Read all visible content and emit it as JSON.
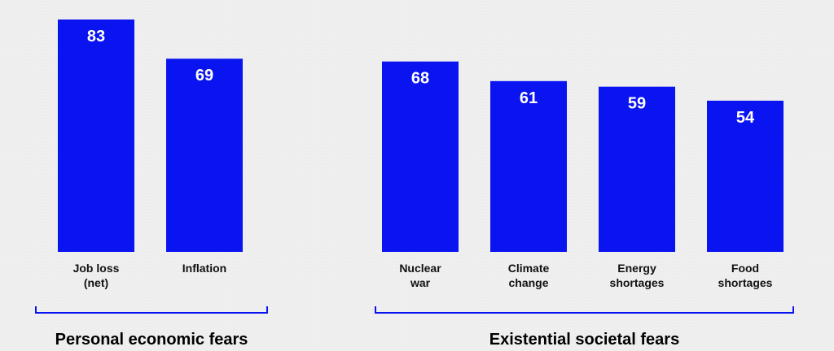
{
  "chart_data": {
    "type": "bar",
    "title": "",
    "xlabel": "",
    "ylabel": "",
    "ylim": [
      0,
      83
    ],
    "grid": false,
    "legend": "none",
    "bar_color": "#0a14f0",
    "groups": [
      {
        "label": "Personal economic fears",
        "bars": [
          {
            "label": [
              "Job loss",
              "(net)"
            ],
            "value": 83
          },
          {
            "label": [
              "Inflation"
            ],
            "value": 69
          }
        ]
      },
      {
        "label": "Existential societal fears",
        "bars": [
          {
            "label": [
              "Nuclear",
              "war"
            ],
            "value": 68
          },
          {
            "label": [
              "Climate",
              "change"
            ],
            "value": 61
          },
          {
            "label": [
              "Energy",
              "shortages"
            ],
            "value": 59
          },
          {
            "label": [
              "Food",
              "shortages"
            ],
            "value": 54
          }
        ]
      }
    ]
  }
}
